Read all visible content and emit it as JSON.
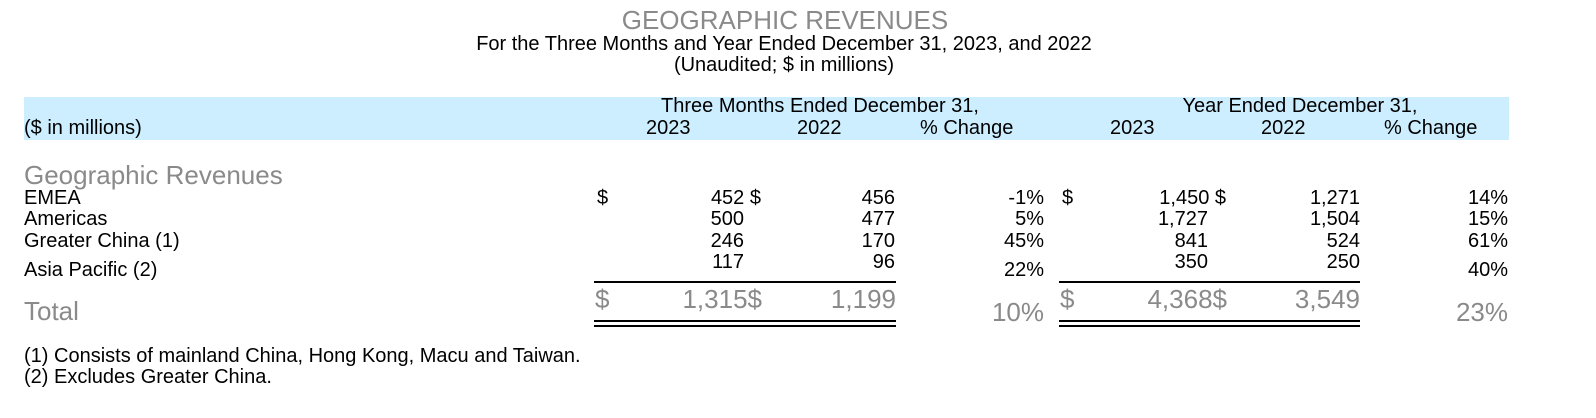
{
  "title": "GEOGRAPHIC REVENUES",
  "subtitle": "For the Three Months and Year Ended December 31, 2023, and 2022",
  "note": "(Unaudited; $ in millions)",
  "header": {
    "units_label": "($ in millions)",
    "three_months_label": "Three Months Ended December 31,",
    "year_label": "Year Ended December 31,",
    "col_2023": "2023",
    "col_2022": "2022",
    "col_change": "% Change"
  },
  "section_title": "Geographic Revenues",
  "rows": [
    {
      "label": "EMEA",
      "q_dollar": "$",
      "q23": "452 $",
      "q22": "456",
      "q_chg": "-1%",
      "y_dollar": "$",
      "y23": "1,450 $",
      "y22": "1,271",
      "y_chg": "14%"
    },
    {
      "label": "Americas",
      "q23": "500",
      "q22": "477",
      "q_chg": "5%",
      "y23": "1,727",
      "y22": "1,504",
      "y_chg": "15%"
    },
    {
      "label": "Greater China (1)",
      "q23": "246",
      "q22": "170",
      "q_chg": "45%",
      "y23": "841",
      "y22": "524",
      "y_chg": "61%"
    },
    {
      "label": "Asia Pacific (2)",
      "q23": "117",
      "q22": "96",
      "q_chg": "22%",
      "y23": "350",
      "y22": "250",
      "y_chg": "40%"
    }
  ],
  "total": {
    "label": "Total",
    "q_dollar": "$",
    "q23": "1,315$",
    "q22": "1,199",
    "q_chg": "10%",
    "y_dollar": "$",
    "y23": "4,368$",
    "y22": "3,549",
    "y_chg": "23%"
  },
  "footnotes": [
    "(1) Consists of mainland China, Hong Kong, Macu and Taiwan.",
    "(2) Excludes Greater China."
  ]
}
